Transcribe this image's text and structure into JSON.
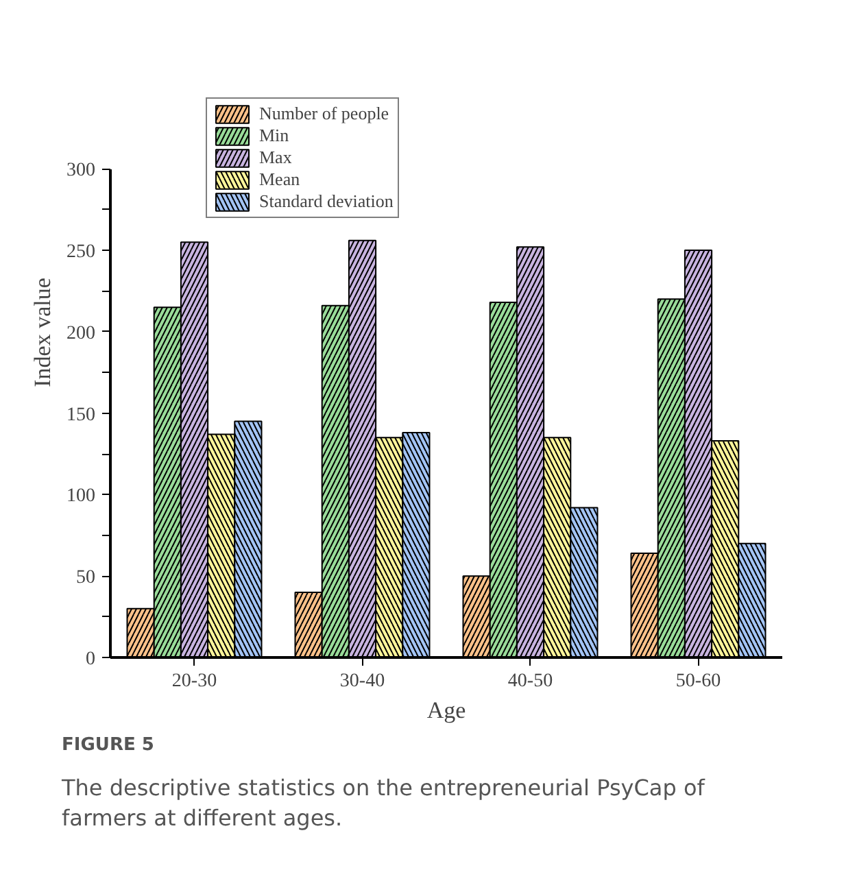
{
  "chart_data": {
    "type": "bar",
    "xlabel": "Age",
    "ylabel": "Index value",
    "categories": [
      "20-30",
      "30-40",
      "40-50",
      "50-60"
    ],
    "series": [
      {
        "name": "Number of people",
        "color": "#ffc28a",
        "values": [
          30,
          40,
          50,
          64
        ]
      },
      {
        "name": "Min",
        "color": "#99dc99",
        "values": [
          215,
          216,
          218,
          220
        ]
      },
      {
        "name": "Max",
        "color": "#c8b4e0",
        "values": [
          255,
          256,
          252,
          250
        ]
      },
      {
        "name": "Mean",
        "color": "#fff59a",
        "values": [
          137,
          135,
          135,
          133
        ]
      },
      {
        "name": "Standard deviation",
        "color": "#a3c4f5",
        "values": [
          145,
          138,
          92,
          70
        ]
      }
    ],
    "ylim": [
      0,
      300
    ],
    "yticks": [
      0,
      {
        "value": 25,
        "label": null
      },
      50,
      {
        "value": 75,
        "label": null
      },
      100,
      {
        "value": 125,
        "label": null
      },
      150,
      {
        "value": 175,
        "label": null
      },
      200,
      {
        "value": 225,
        "label": null
      },
      250,
      {
        "value": 275,
        "label": null
      },
      300
    ],
    "grid": false,
    "legend": "top left",
    "annotations": [
      "FIGURE 5",
      "The descriptive statistics on the entrepreneurial PsyCap of farmers at different ages."
    ]
  }
}
